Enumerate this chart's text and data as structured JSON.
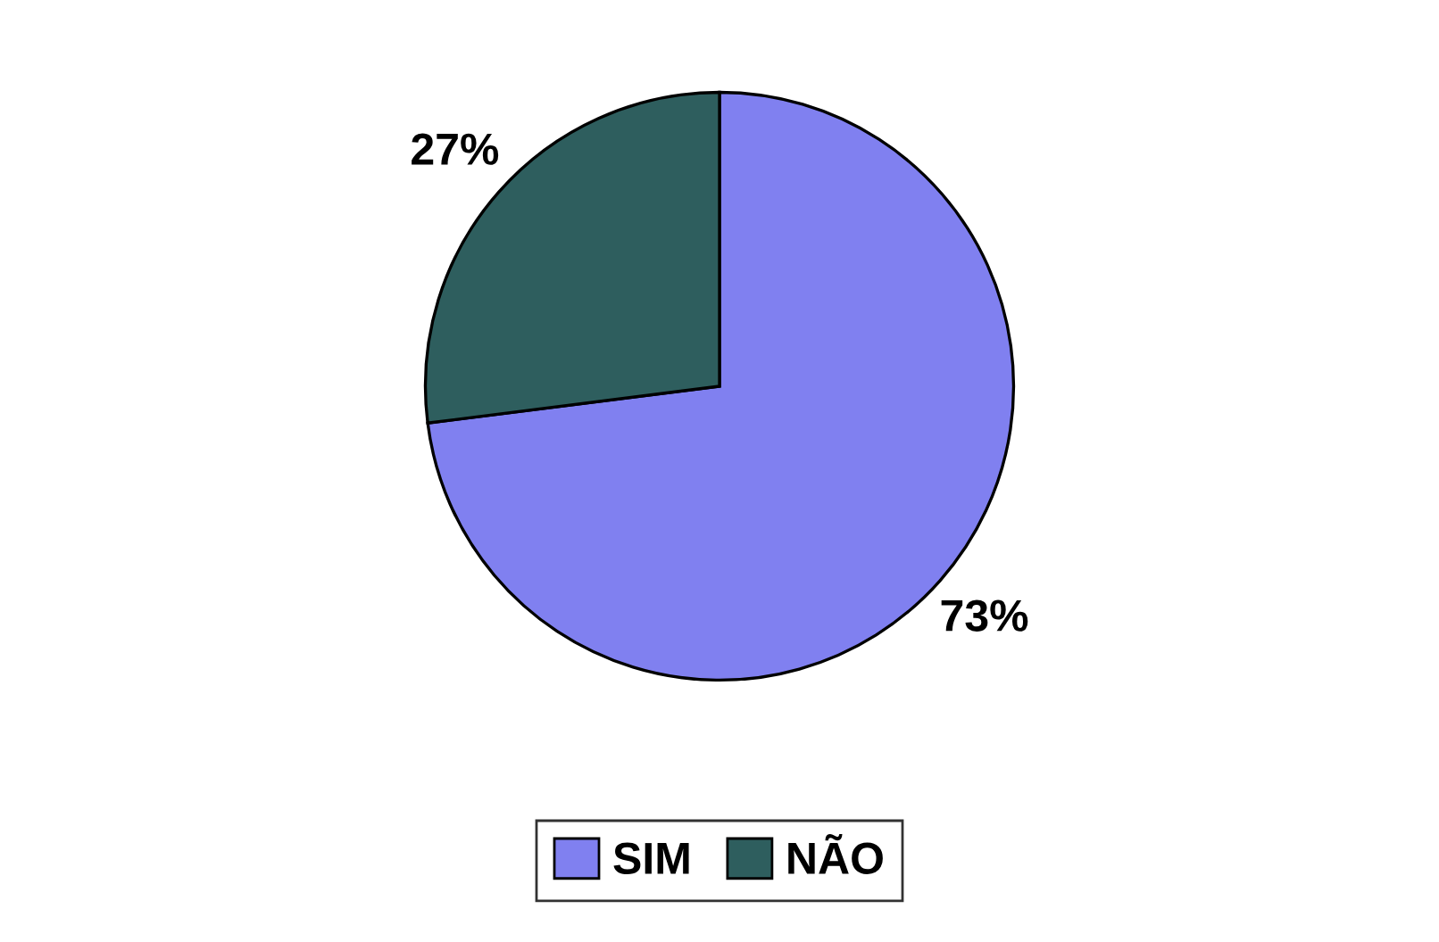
{
  "chart_data": {
    "type": "pie",
    "categories": [
      "SIM",
      "NÃO"
    ],
    "values": [
      73,
      27
    ],
    "colors": [
      "#8080f0",
      "#2e5e5e"
    ],
    "value_labels": [
      "73%",
      "27%"
    ],
    "legend": "bottom"
  }
}
